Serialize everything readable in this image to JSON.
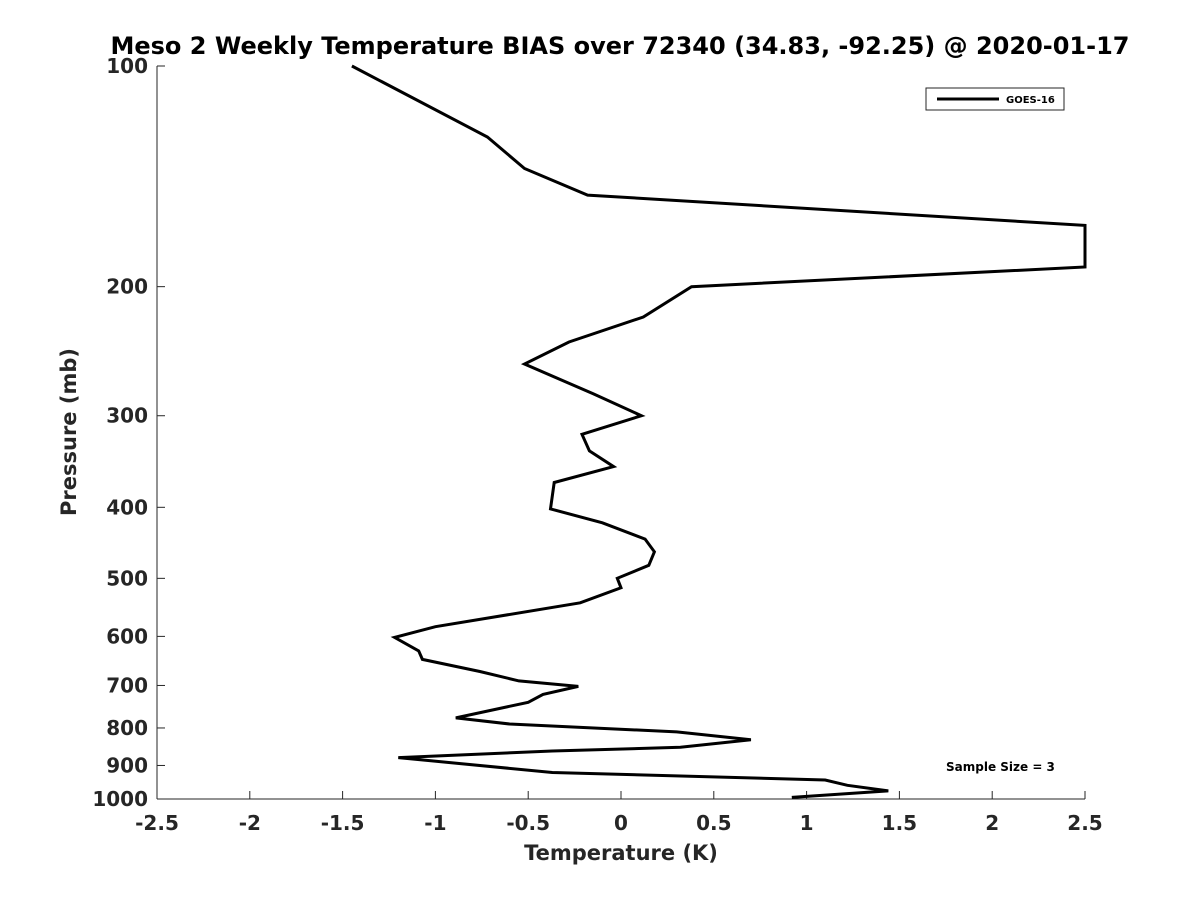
{
  "chart_data": {
    "type": "line",
    "title": "Meso 2 Weekly Temperature BIAS over 72340 (34.83, -92.25) @ 2020-01-17",
    "xlabel": "Temperature (K)",
    "ylabel": "Pressure (mb)",
    "xlim": [
      -2.5,
      2.5
    ],
    "ylim": [
      100,
      1000
    ],
    "y_scale": "log",
    "y_reversed": true,
    "xticks": [
      "-2.5",
      "-2",
      "-1.5",
      "-1",
      "-0.5",
      "0",
      "0.5",
      "1",
      "1.5",
      "2",
      "2.5"
    ],
    "yticks": [
      "100",
      "200",
      "300",
      "400",
      "500",
      "600",
      "700",
      "800",
      "900",
      "1000"
    ],
    "grid": false,
    "legend_position": "top-right",
    "annotation": "Sample Size = 3",
    "series": [
      {
        "name": "GOES-16",
        "color": "#000000",
        "points": [
          [
            -1.45,
            100
          ],
          [
            -0.72,
            125
          ],
          [
            -0.52,
            138
          ],
          [
            -0.18,
            150
          ],
          [
            2.5,
            165
          ],
          [
            2.5,
            188
          ],
          [
            0.38,
            200
          ],
          [
            0.12,
            220
          ],
          [
            -0.28,
            238
          ],
          [
            -0.52,
            255
          ],
          [
            -0.15,
            280
          ],
          [
            0.11,
            300
          ],
          [
            -0.21,
            318
          ],
          [
            -0.17,
            335
          ],
          [
            -0.04,
            352
          ],
          [
            -0.36,
            370
          ],
          [
            -0.38,
            402
          ],
          [
            -0.1,
            420
          ],
          [
            0.13,
            442
          ],
          [
            0.18,
            460
          ],
          [
            0.15,
            480
          ],
          [
            -0.02,
            500
          ],
          [
            0.0,
            515
          ],
          [
            -0.22,
            540
          ],
          [
            -1.0,
            582
          ],
          [
            -1.22,
            602
          ],
          [
            -1.09,
            628
          ],
          [
            -1.07,
            645
          ],
          [
            -0.76,
            670
          ],
          [
            -0.55,
            690
          ],
          [
            -0.23,
            702
          ],
          [
            -0.42,
            720
          ],
          [
            -0.5,
            738
          ],
          [
            -0.89,
            775
          ],
          [
            -0.6,
            790
          ],
          [
            0.3,
            810
          ],
          [
            0.7,
            830
          ],
          [
            0.32,
            850
          ],
          [
            -0.37,
            860
          ],
          [
            -1.2,
            878
          ],
          [
            -0.37,
            920
          ],
          [
            1.1,
            942
          ],
          [
            1.22,
            958
          ],
          [
            1.44,
            975
          ],
          [
            0.92,
            995
          ]
        ]
      }
    ]
  }
}
